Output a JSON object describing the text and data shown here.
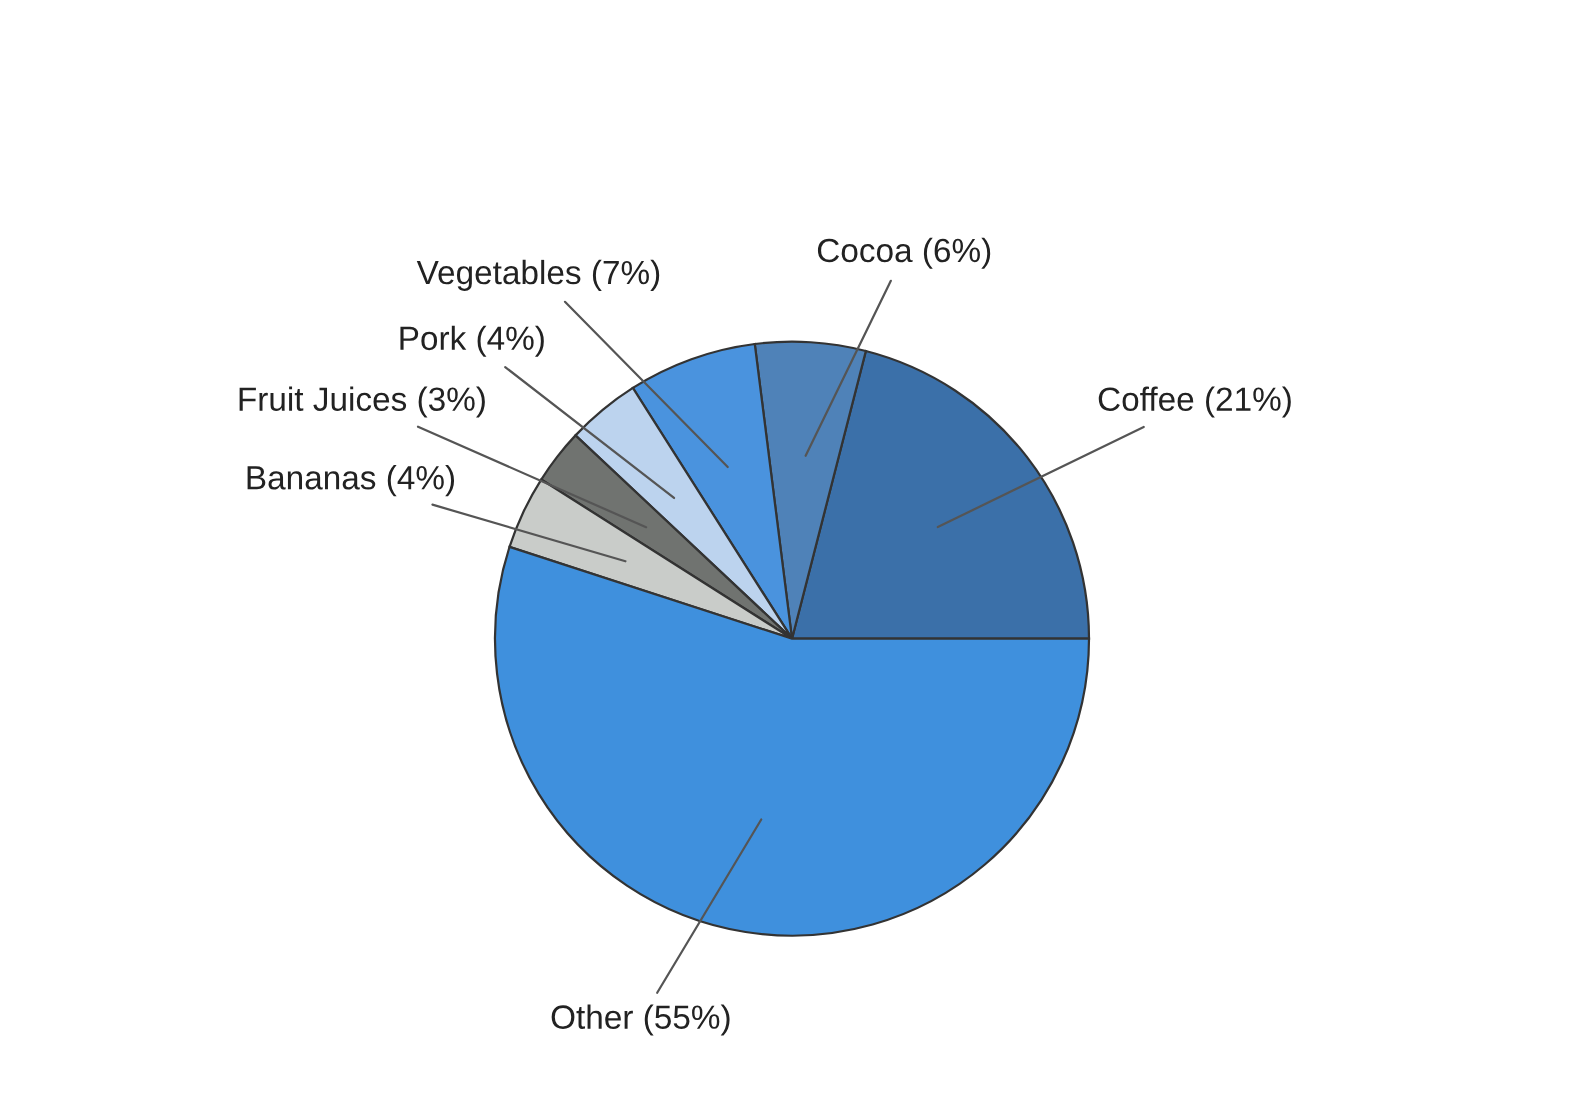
{
  "chart_data": {
    "type": "pie",
    "categories": [
      "Coffee (21%)",
      "Cocoa (6%)",
      "Vegetables (7%)",
      "Pork (4%)",
      "Fruit Juices (3%)",
      "Bananas (4%)",
      "Other (55%)"
    ],
    "values": [
      21,
      6,
      7,
      4,
      3,
      4,
      55
    ],
    "colors": [
      "#3b70a9",
      "#4f82b8",
      "#4a93de",
      "#bcd3ee",
      "#707370",
      "#c9ccc9",
      "#3f90dd"
    ],
    "legend": false
  }
}
